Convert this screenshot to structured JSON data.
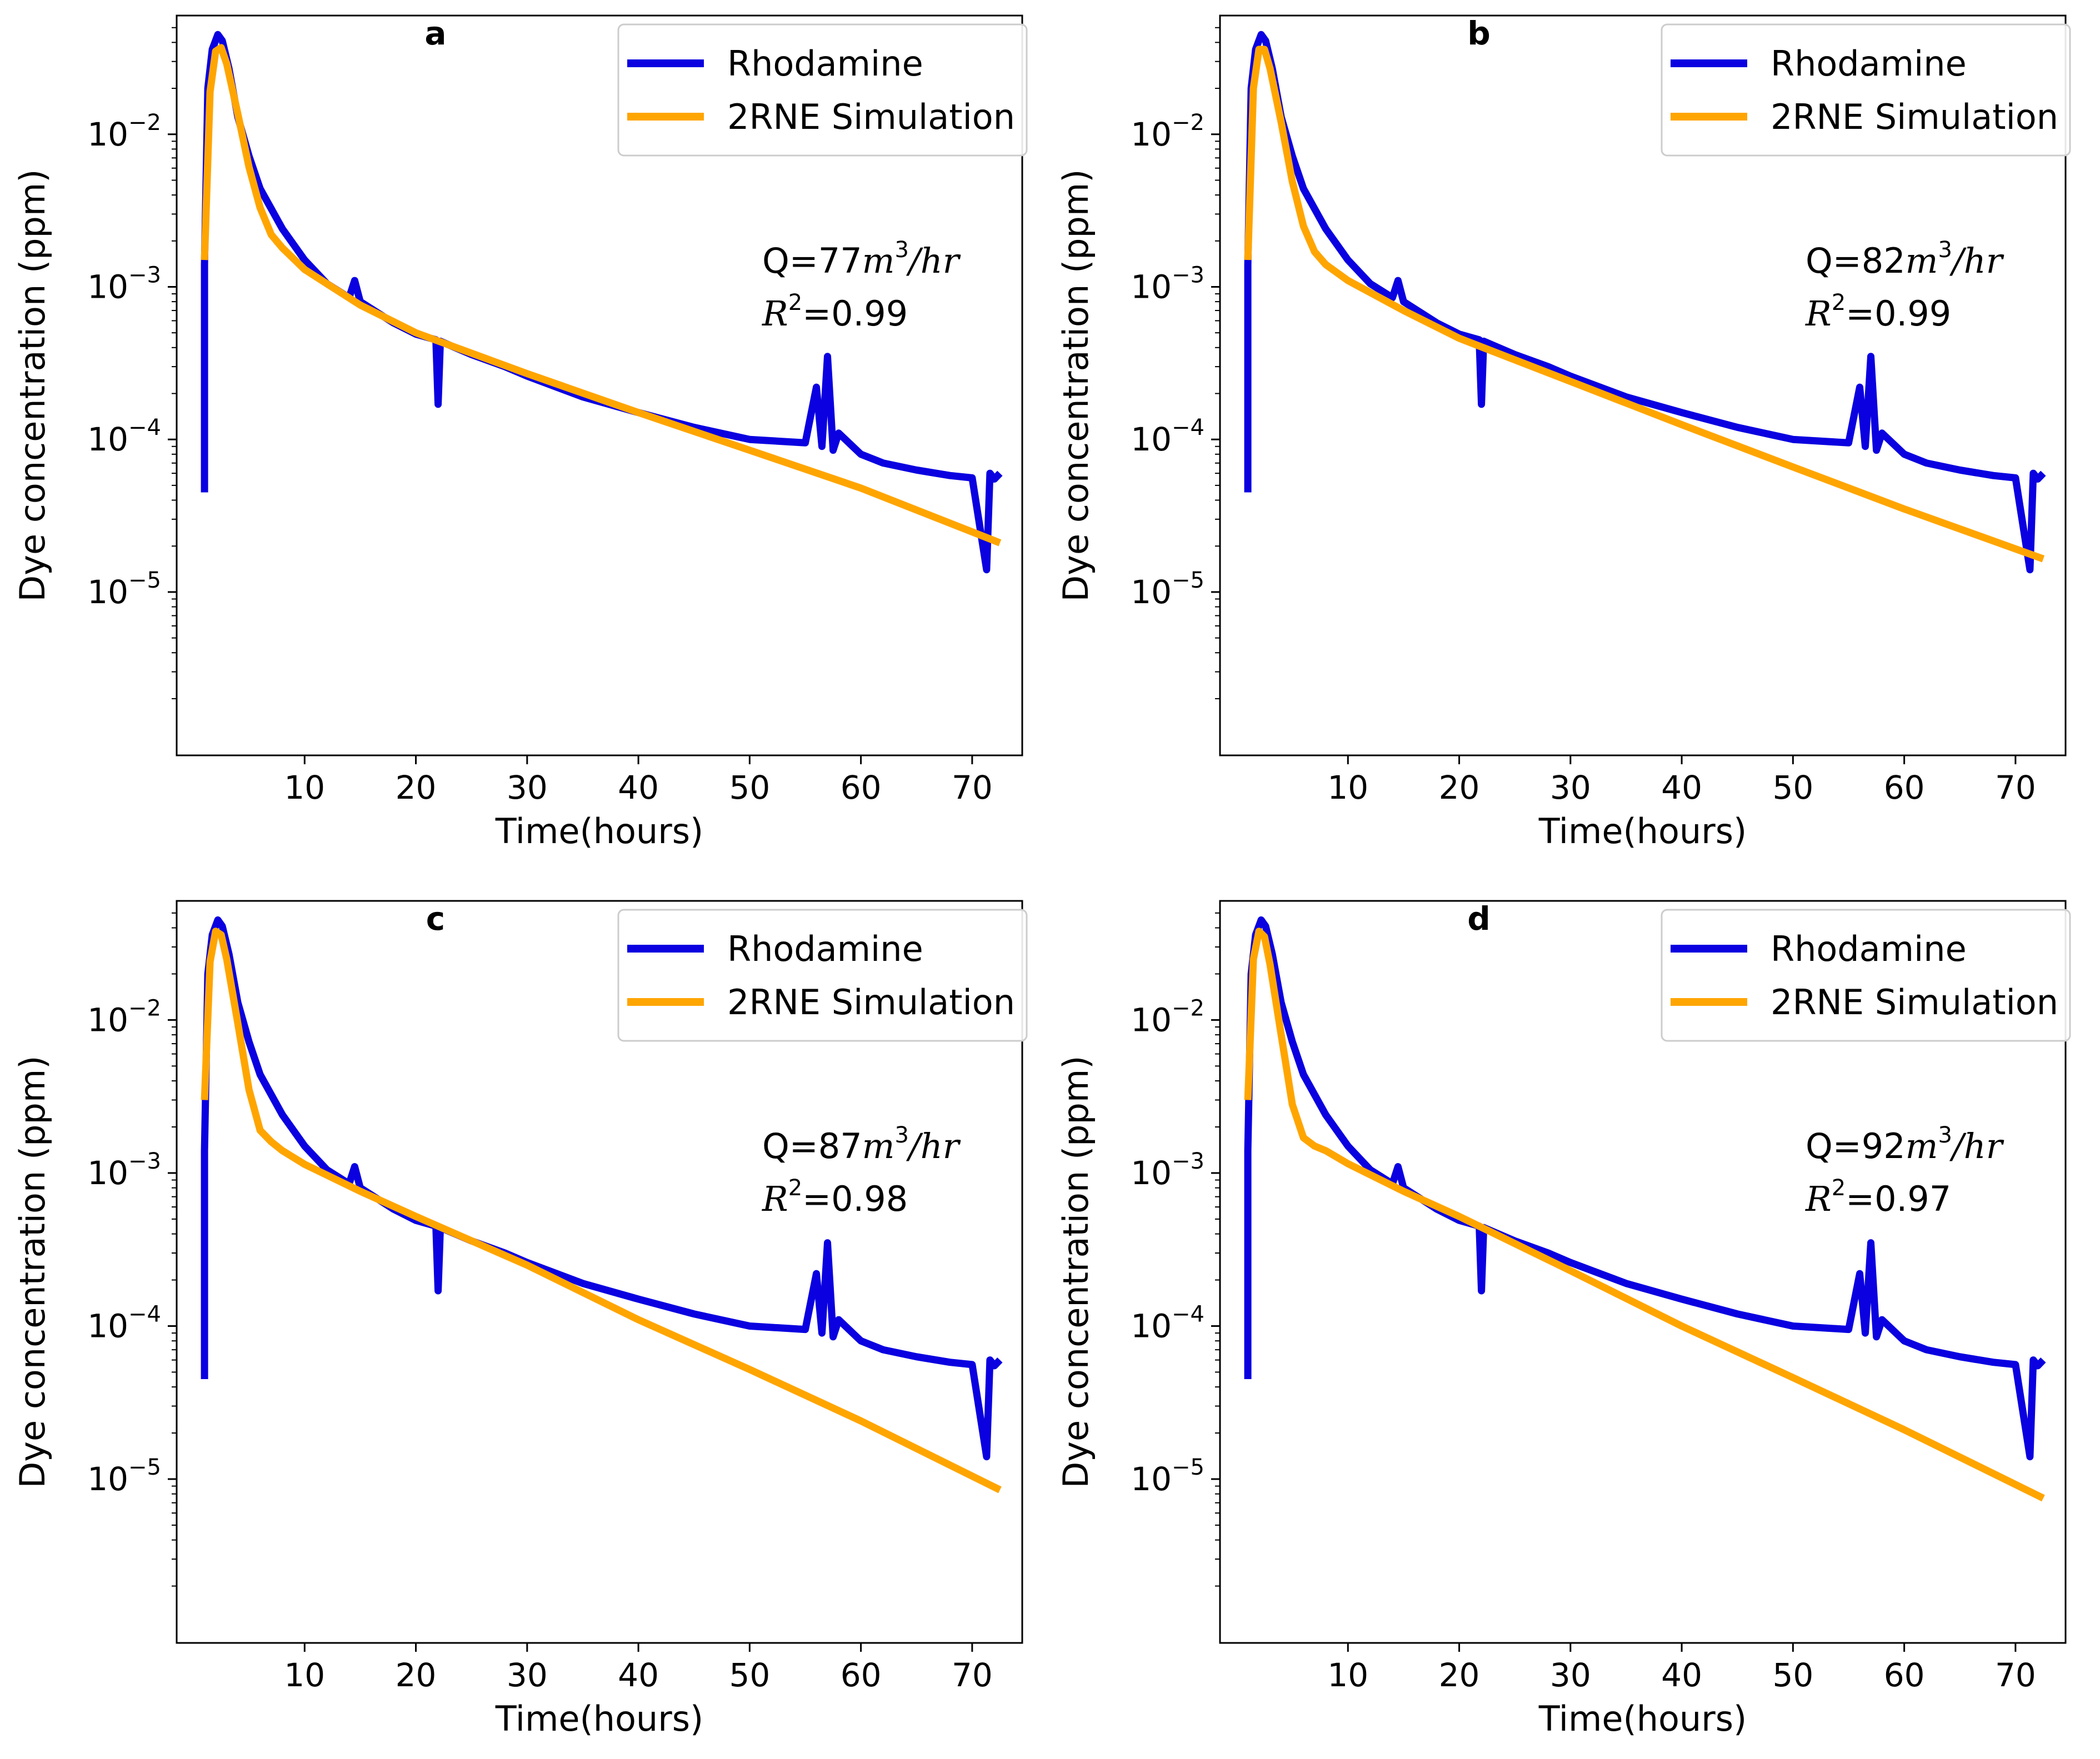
{
  "figure": {
    "x_axis_label": "Time(hours)",
    "y_axis_label": "Dye concentration (ppm)",
    "x_ticks": [
      10,
      20,
      30,
      40,
      50,
      60,
      70
    ],
    "y_tick_exponents": [
      -5,
      -4,
      -3,
      -2
    ],
    "legend_labels": [
      "Rhodamine",
      "2RNE Simulation"
    ]
  },
  "colors": {
    "observed": "#0a00e0",
    "simulated": "#ffa500",
    "axes": "#000000",
    "legend_border": "#cccccc"
  },
  "chart_data": [
    {
      "type": "line",
      "panel": "a",
      "xlabel": "Time(hours)",
      "ylabel": "Dye concentration (ppm)",
      "yscale": "log",
      "xlim": [
        -1.5,
        74.5
      ],
      "ylim": [
        8.5e-07,
        0.06
      ],
      "annotation": {
        "q_prefix": "Q=",
        "q_value": "77",
        "q_unit": "m",
        "q_unit_exp": "3",
        "q_unit_tail": "/hr",
        "r2_symbol": "R",
        "r2_exp": "2",
        "r2_prefix": "=",
        "r2_value": "0.99"
      },
      "series": [
        {
          "name": "Rhodamine",
          "x": [
            1.0,
            1.0,
            1.3,
            1.7,
            2.2,
            2.6,
            3.2,
            4,
            5,
            6,
            8,
            10,
            12,
            14,
            14.5,
            15,
            18,
            20,
            21.8,
            22,
            22.2,
            25,
            28,
            30,
            35,
            40,
            45,
            50,
            55,
            56,
            56.5,
            57,
            57.5,
            58,
            60,
            62,
            65,
            68,
            70,
            71.3,
            71.6,
            72,
            72.5
          ],
          "y": [
            4.5e-05,
            0.0014,
            0.02,
            0.036,
            0.045,
            0.041,
            0.027,
            0.013,
            0.0072,
            0.0044,
            0.0024,
            0.0015,
            0.00105,
            0.00085,
            0.0011,
            0.0008,
            0.00058,
            0.00049,
            0.00045,
            0.00017,
            0.00044,
            0.00036,
            0.0003,
            0.00026,
            0.00019,
            0.00015,
            0.00012,
            0.0001,
            9.5e-05,
            0.00022,
            9e-05,
            0.00035,
            8.5e-05,
            0.00011,
            8e-05,
            7e-05,
            6.3e-05,
            5.8e-05,
            5.6e-05,
            1.4e-05,
            6e-05,
            5.5e-05,
            6e-05
          ]
        },
        {
          "name": "2RNE Simulation",
          "x": [
            1.0,
            1.5,
            2.0,
            2.5,
            3.0,
            4,
            5,
            6,
            7,
            8,
            10,
            15,
            20,
            30,
            40,
            50,
            60,
            72.5
          ],
          "y": [
            0.0015,
            0.019,
            0.035,
            0.037,
            0.029,
            0.0136,
            0.0061,
            0.0033,
            0.0022,
            0.0018,
            0.0013,
            0.00076,
            0.0005,
            0.00027,
            0.00015,
            8.5e-05,
            4.8e-05,
            2.1e-05
          ]
        }
      ]
    },
    {
      "type": "line",
      "panel": "b",
      "xlabel": "Time(hours)",
      "ylabel": "Dye concentration (ppm)",
      "yscale": "log",
      "xlim": [
        -1.5,
        74.5
      ],
      "ylim": [
        8.5e-07,
        0.06
      ],
      "annotation": {
        "q_prefix": "Q=",
        "q_value": "82",
        "q_unit": "m",
        "q_unit_exp": "3",
        "q_unit_tail": "/hr",
        "r2_symbol": "R",
        "r2_exp": "2",
        "r2_prefix": "=",
        "r2_value": "0.99"
      },
      "series": [
        {
          "name": "Rhodamine",
          "x": [
            1.0,
            1.0,
            1.3,
            1.7,
            2.2,
            2.6,
            3.2,
            4,
            5,
            6,
            8,
            10,
            12,
            14,
            14.5,
            15,
            18,
            20,
            21.8,
            22,
            22.2,
            25,
            28,
            30,
            35,
            40,
            45,
            50,
            55,
            56,
            56.5,
            57,
            57.5,
            58,
            60,
            62,
            65,
            68,
            70,
            71.3,
            71.6,
            72,
            72.5
          ],
          "y": [
            4.5e-05,
            0.0014,
            0.02,
            0.036,
            0.045,
            0.041,
            0.027,
            0.013,
            0.0072,
            0.0044,
            0.0024,
            0.0015,
            0.00105,
            0.00085,
            0.0011,
            0.0008,
            0.00058,
            0.00049,
            0.00045,
            0.00017,
            0.00044,
            0.00036,
            0.0003,
            0.00026,
            0.00019,
            0.00015,
            0.00012,
            0.0001,
            9.5e-05,
            0.00022,
            9e-05,
            0.00035,
            8.5e-05,
            0.00011,
            8e-05,
            7e-05,
            6.3e-05,
            5.8e-05,
            5.6e-05,
            1.4e-05,
            6e-05,
            5.5e-05,
            6e-05
          ]
        },
        {
          "name": "2RNE Simulation",
          "x": [
            1.0,
            1.5,
            2.0,
            2.5,
            3.0,
            4,
            5,
            6,
            7,
            8,
            10,
            15,
            20,
            30,
            40,
            50,
            60,
            72.5
          ],
          "y": [
            0.0015,
            0.02,
            0.036,
            0.036,
            0.027,
            0.012,
            0.0049,
            0.0025,
            0.0017,
            0.0014,
            0.0011,
            0.0007,
            0.00046,
            0.00024,
            0.000125,
            6.6e-05,
            3.5e-05,
            1.65e-05
          ]
        }
      ]
    },
    {
      "type": "line",
      "panel": "c",
      "xlabel": "Time(hours)",
      "ylabel": "Dye concentration (ppm)",
      "yscale": "log",
      "xlim": [
        -1.5,
        74.5
      ],
      "ylim": [
        8.5e-07,
        0.06
      ],
      "annotation": {
        "q_prefix": "Q=",
        "q_value": "87",
        "q_unit": "m",
        "q_unit_exp": "3",
        "q_unit_tail": "/hr",
        "r2_symbol": "R",
        "r2_exp": "2",
        "r2_prefix": "=",
        "r2_value": "0.98"
      },
      "series": [
        {
          "name": "Rhodamine",
          "x": [
            1.0,
            1.0,
            1.3,
            1.7,
            2.2,
            2.6,
            3.2,
            4,
            5,
            6,
            8,
            10,
            12,
            14,
            14.5,
            15,
            18,
            20,
            21.8,
            22,
            22.2,
            25,
            28,
            30,
            35,
            40,
            45,
            50,
            55,
            56,
            56.5,
            57,
            57.5,
            58,
            60,
            62,
            65,
            68,
            70,
            71.3,
            71.6,
            72,
            72.5
          ],
          "y": [
            4.5e-05,
            0.0014,
            0.02,
            0.036,
            0.045,
            0.041,
            0.027,
            0.013,
            0.0072,
            0.0044,
            0.0024,
            0.0015,
            0.00105,
            0.00085,
            0.0011,
            0.0008,
            0.00058,
            0.00049,
            0.00045,
            0.00017,
            0.00044,
            0.00036,
            0.0003,
            0.00026,
            0.00019,
            0.00015,
            0.00012,
            0.0001,
            9.5e-05,
            0.00022,
            9e-05,
            0.00035,
            8.5e-05,
            0.00011,
            8e-05,
            7e-05,
            6.3e-05,
            5.8e-05,
            5.6e-05,
            1.4e-05,
            6e-05,
            5.5e-05,
            6e-05
          ]
        },
        {
          "name": "2RNE Simulation",
          "x": [
            1.0,
            1.5,
            2.0,
            2.5,
            3.0,
            4,
            5,
            6,
            7,
            8,
            10,
            15,
            20,
            30,
            40,
            50,
            60,
            72.5
          ],
          "y": [
            0.003,
            0.024,
            0.038,
            0.036,
            0.025,
            0.0095,
            0.0035,
            0.0019,
            0.0016,
            0.0014,
            0.00114,
            0.00076,
            0.00052,
            0.00025,
            0.00011,
            5.2e-05,
            2.4e-05,
            8.5e-06
          ]
        }
      ]
    },
    {
      "type": "line",
      "panel": "d",
      "xlabel": "Time(hours)",
      "ylabel": "Dye concentration (ppm)",
      "yscale": "log",
      "xlim": [
        -1.5,
        74.5
      ],
      "ylim": [
        8.5e-07,
        0.06
      ],
      "annotation": {
        "q_prefix": "Q=",
        "q_value": "92",
        "q_unit": "m",
        "q_unit_exp": "3",
        "q_unit_tail": "/hr",
        "r2_symbol": "R",
        "r2_exp": "2",
        "r2_prefix": "=",
        "r2_value": "0.97"
      },
      "series": [
        {
          "name": "Rhodamine",
          "x": [
            1.0,
            1.0,
            1.3,
            1.7,
            2.2,
            2.6,
            3.2,
            4,
            5,
            6,
            8,
            10,
            12,
            14,
            14.5,
            15,
            18,
            20,
            21.8,
            22,
            22.2,
            25,
            28,
            30,
            35,
            40,
            45,
            50,
            55,
            56,
            56.5,
            57,
            57.5,
            58,
            60,
            62,
            65,
            68,
            70,
            71.3,
            71.6,
            72,
            72.5
          ],
          "y": [
            4.5e-05,
            0.0014,
            0.02,
            0.036,
            0.045,
            0.041,
            0.027,
            0.013,
            0.0072,
            0.0044,
            0.0024,
            0.0015,
            0.00105,
            0.00085,
            0.0011,
            0.0008,
            0.00058,
            0.00049,
            0.00045,
            0.00017,
            0.00044,
            0.00036,
            0.0003,
            0.00026,
            0.00019,
            0.00015,
            0.00012,
            0.0001,
            9.5e-05,
            0.00022,
            9e-05,
            0.00035,
            8.5e-05,
            0.00011,
            8e-05,
            7e-05,
            6.3e-05,
            5.8e-05,
            5.6e-05,
            1.4e-05,
            6e-05,
            5.5e-05,
            6e-05
          ]
        },
        {
          "name": "2RNE Simulation",
          "x": [
            1.0,
            1.5,
            2.0,
            2.5,
            3.0,
            4,
            5,
            6,
            7,
            8,
            10,
            15,
            20,
            30,
            40,
            50,
            60,
            72.5
          ],
          "y": [
            0.003,
            0.025,
            0.038,
            0.035,
            0.023,
            0.008,
            0.0028,
            0.0017,
            0.0015,
            0.0014,
            0.00115,
            0.00076,
            0.00052,
            0.00023,
            0.0001,
            4.6e-05,
            2.1e-05,
            7.5e-06
          ]
        }
      ]
    }
  ]
}
